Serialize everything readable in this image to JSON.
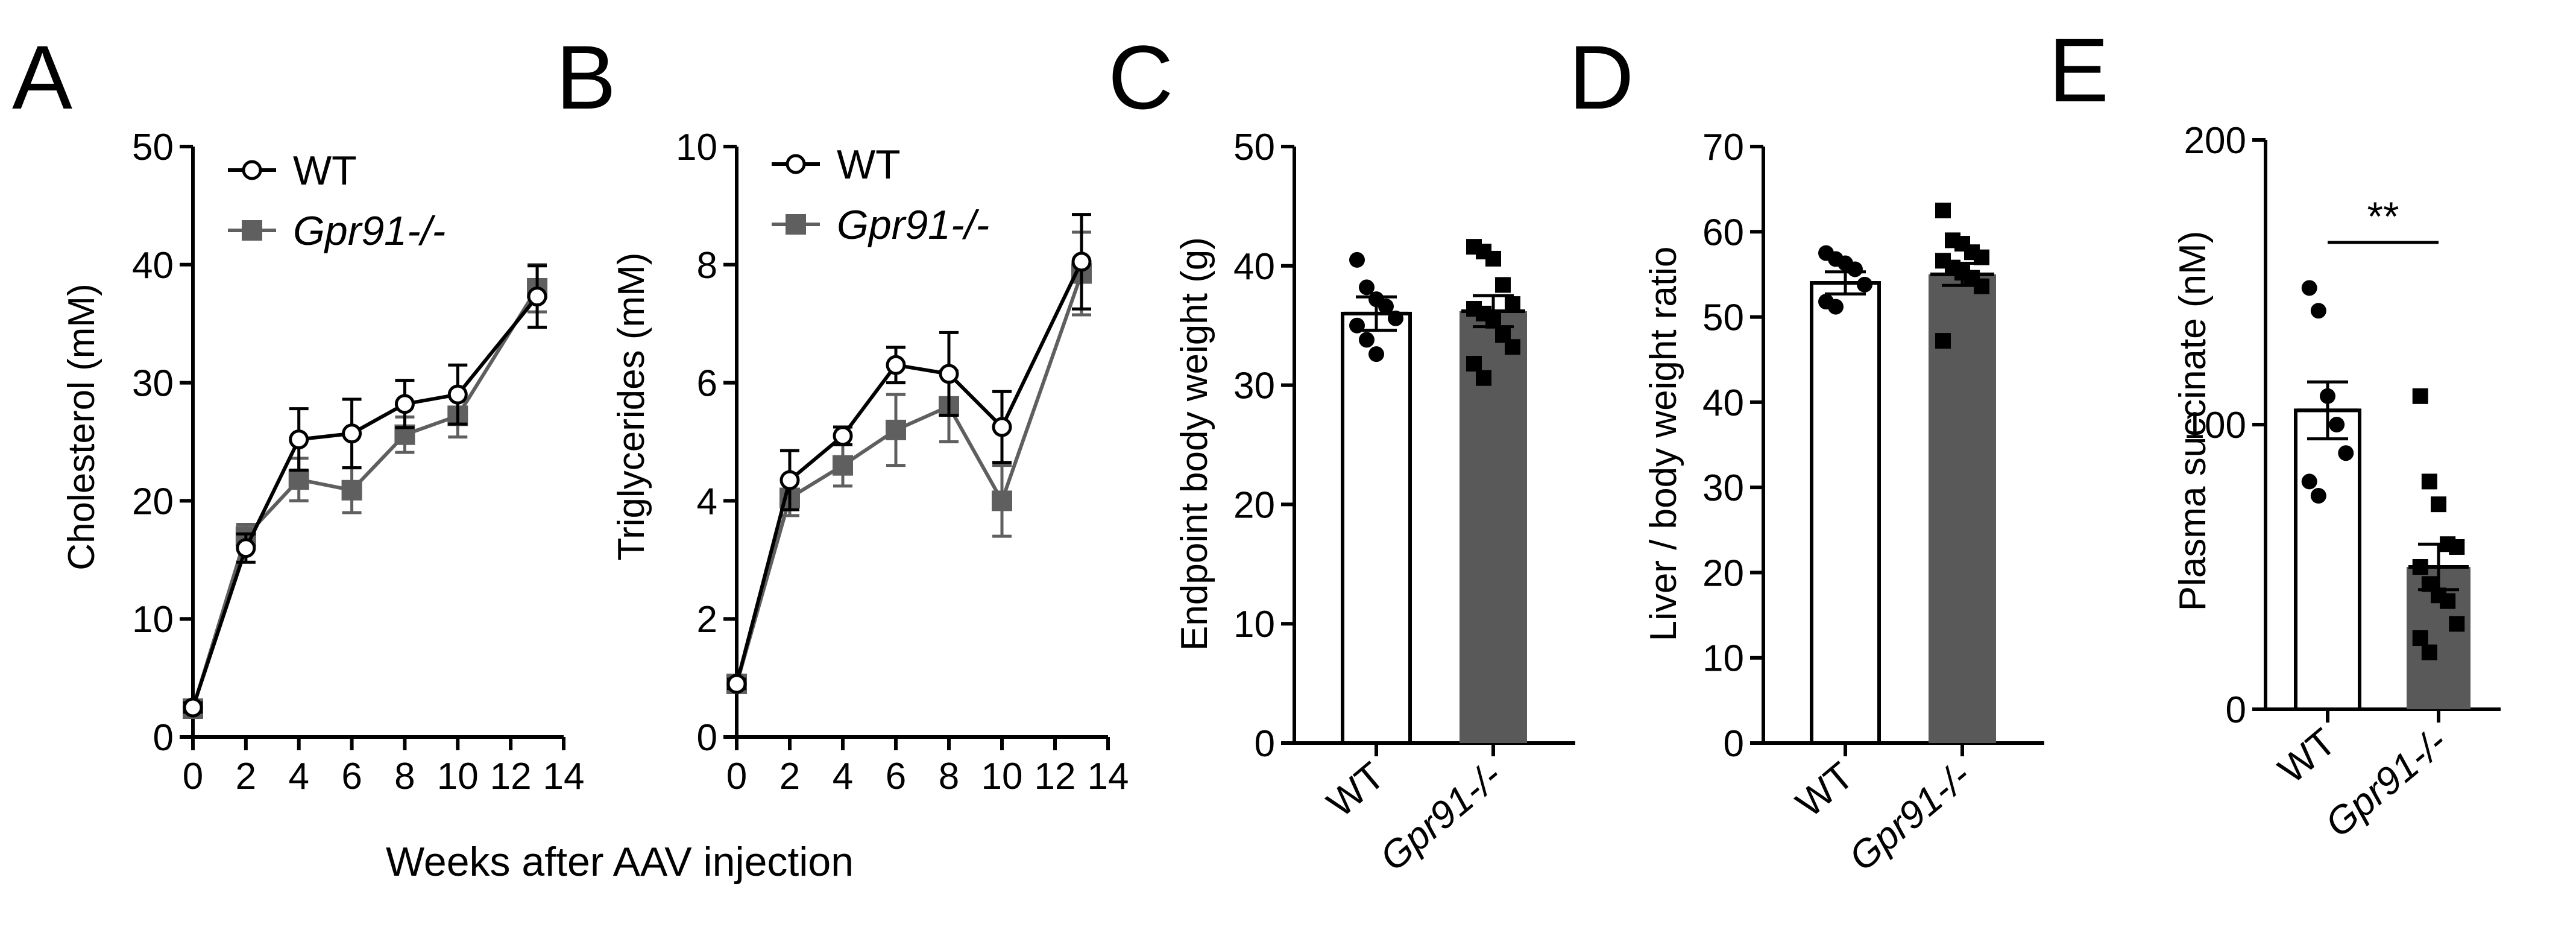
{
  "colors": {
    "wt": "#000000",
    "ko": "#5f5f5f",
    "bar_ko": "#595959",
    "axis": "#000000",
    "point": "#000000"
  },
  "shared_xlabel": "Weeks after AAV injection",
  "chart_data": [
    {
      "panel": "A",
      "type": "line",
      "ylabel": "Cholesterol (mM)",
      "ylim": [
        0,
        50
      ],
      "yticks": [
        0,
        10,
        20,
        30,
        40,
        50
      ],
      "xlim": [
        0,
        14
      ],
      "xticks": [
        0,
        2,
        4,
        6,
        8,
        10,
        12,
        14
      ],
      "xtick_labels": [
        "0",
        "2",
        "4",
        "6",
        "8",
        "10",
        "12",
        "14"
      ],
      "x": [
        0,
        2,
        4,
        6,
        8,
        10,
        13
      ],
      "legend": [
        "WT",
        "Gpr91-/-"
      ],
      "series": [
        {
          "name": "WT",
          "marker": "open-circle",
          "values": [
            2.5,
            16.0,
            25.2,
            25.7,
            28.2,
            29.0,
            37.3
          ],
          "errors": [
            0.4,
            1.2,
            2.6,
            2.9,
            2.0,
            2.5,
            2.6
          ]
        },
        {
          "name": "Gpr91-/-",
          "marker": "filled-square",
          "values": [
            2.4,
            17.0,
            21.8,
            20.9,
            25.6,
            27.2,
            38.0
          ],
          "errors": [
            0.4,
            1.0,
            1.8,
            1.9,
            1.5,
            1.8,
            2.0
          ]
        }
      ]
    },
    {
      "panel": "B",
      "type": "line",
      "ylabel": "Triglycerides (mM)",
      "ylim": [
        0,
        10
      ],
      "yticks": [
        0,
        2,
        4,
        6,
        8,
        10
      ],
      "xlim": [
        0,
        14
      ],
      "xticks": [
        0,
        2,
        4,
        6,
        8,
        10,
        12,
        14
      ],
      "xtick_labels": [
        "0",
        "2",
        "4",
        "6",
        "8",
        "10",
        "12",
        "14"
      ],
      "x": [
        0,
        2,
        4,
        6,
        8,
        10,
        13
      ],
      "legend": [
        "WT",
        "Gpr91-/-"
      ],
      "series": [
        {
          "name": "WT",
          "marker": "open-circle",
          "values": [
            0.9,
            4.35,
            5.1,
            6.3,
            6.15,
            5.25,
            8.05
          ],
          "errors": [
            0.08,
            0.5,
            0.15,
            0.3,
            0.7,
            0.6,
            0.8
          ]
        },
        {
          "name": "Gpr91-/-",
          "marker": "filled-square",
          "values": [
            0.9,
            4.05,
            4.6,
            5.2,
            5.6,
            4.0,
            7.85
          ],
          "errors": [
            0.08,
            0.3,
            0.35,
            0.6,
            0.6,
            0.6,
            0.7
          ]
        }
      ]
    },
    {
      "panel": "C",
      "type": "bar",
      "ylabel": "Endpoint body weight (g)",
      "ylim": [
        0,
        50
      ],
      "yticks": [
        0,
        10,
        20,
        30,
        40,
        50
      ],
      "categories": [
        "WT",
        "Gpr91-/-"
      ],
      "values": [
        36.0,
        36.2
      ],
      "errors": [
        1.4,
        1.3
      ],
      "points": [
        [
          40.5,
          38.2,
          37.2,
          36.6,
          35.6,
          35.0,
          33.8,
          32.6
        ],
        [
          41.6,
          41.2,
          40.6,
          38.4,
          36.8,
          36.4,
          36.0,
          35.4,
          34.2,
          33.2,
          31.8,
          30.6
        ]
      ]
    },
    {
      "panel": "D",
      "type": "bar",
      "ylabel": "Liver / body weight ratio",
      "ylim": [
        0,
        70
      ],
      "yticks": [
        0,
        10,
        20,
        30,
        40,
        50,
        60,
        70
      ],
      "categories": [
        "WT",
        "Gpr91-/-"
      ],
      "values": [
        54.0,
        55.0
      ],
      "errors": [
        1.3,
        1.3
      ],
      "points": [
        [
          57.5,
          56.8,
          56.3,
          55.6,
          53.8,
          51.8,
          51.2
        ],
        [
          62.5,
          59.0,
          58.6,
          57.6,
          57.0,
          56.6,
          55.8,
          55.2,
          54.6,
          53.6,
          47.2
        ]
      ]
    },
    {
      "panel": "E",
      "type": "bar",
      "ylabel": "Plasma succinate (nM)",
      "ylim": [
        0,
        200
      ],
      "yticks": [
        0,
        100,
        200
      ],
      "categories": [
        "WT",
        "Gpr91-/-"
      ],
      "values": [
        105,
        50
      ],
      "errors": [
        10,
        8
      ],
      "points": [
        [
          148,
          140,
          110,
          100,
          90,
          80,
          75
        ],
        [
          110,
          80,
          72,
          58,
          57,
          50,
          44,
          40,
          38,
          30,
          25,
          20
        ]
      ],
      "significance": "**"
    }
  ]
}
